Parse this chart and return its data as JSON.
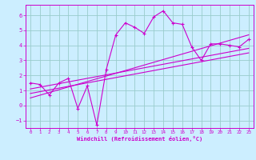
{
  "xlabel": "Windchill (Refroidissement éolien,°C)",
  "background_color": "#cceeff",
  "grid_color": "#99cccc",
  "line_color": "#cc00cc",
  "xlim": [
    -0.5,
    23.5
  ],
  "ylim": [
    -1.5,
    6.7
  ],
  "xticks": [
    0,
    1,
    2,
    3,
    4,
    5,
    6,
    7,
    8,
    9,
    10,
    11,
    12,
    13,
    14,
    15,
    16,
    17,
    18,
    19,
    20,
    21,
    22,
    23
  ],
  "yticks": [
    -1,
    0,
    1,
    2,
    3,
    4,
    5,
    6
  ],
  "main_x": [
    0,
    1,
    2,
    3,
    4,
    5,
    6,
    7,
    8,
    9,
    10,
    11,
    12,
    13,
    14,
    15,
    16,
    17,
    18,
    19,
    20,
    21,
    22,
    23
  ],
  "main_y": [
    1.5,
    1.4,
    0.7,
    1.5,
    1.8,
    -0.2,
    1.3,
    -1.3,
    2.4,
    4.7,
    5.5,
    5.2,
    4.8,
    5.9,
    6.3,
    5.5,
    5.4,
    3.9,
    3.0,
    4.1,
    4.1,
    4.0,
    3.9,
    4.4
  ],
  "reg_line1_x": [
    0,
    23
  ],
  "reg_line1_y": [
    0.8,
    3.5
  ],
  "reg_line2_x": [
    0,
    23
  ],
  "reg_line2_y": [
    1.1,
    3.8
  ],
  "reg_line3_x": [
    0,
    23
  ],
  "reg_line3_y": [
    0.5,
    4.7
  ]
}
